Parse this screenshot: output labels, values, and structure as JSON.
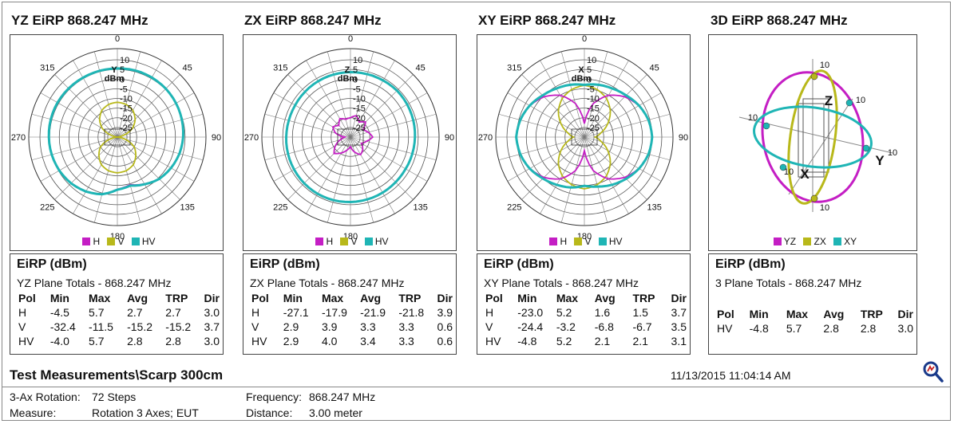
{
  "panels": [
    {
      "title": "YZ EiRP 868.247 MHz",
      "type": "polar",
      "legend": [
        {
          "label": "H",
          "color": "#c41ec4"
        },
        {
          "label": "V",
          "color": "#b8b81a"
        },
        {
          "label": "HV",
          "color": "#1fb5b5"
        }
      ],
      "table": {
        "title": "EiRP (dBm)",
        "subtitle": "YZ Plane Totals - 868.247 MHz",
        "headers": [
          "Pol",
          "Min",
          "Max",
          "Avg",
          "TRP",
          "Dir"
        ],
        "rows": [
          [
            "H",
            "-4.5",
            "5.7",
            "2.7",
            "2.7",
            "3.0"
          ],
          [
            "V",
            "-32.4",
            "-11.5",
            "-15.2",
            "-15.2",
            "3.7"
          ],
          [
            "HV",
            "-4.0",
            "5.7",
            "2.8",
            "2.8",
            "3.0"
          ]
        ]
      }
    },
    {
      "title": "ZX EiRP 868.247 MHz",
      "type": "polar",
      "legend": [
        {
          "label": "H",
          "color": "#c41ec4"
        },
        {
          "label": "V",
          "color": "#b8b81a"
        },
        {
          "label": "HV",
          "color": "#1fb5b5"
        }
      ],
      "table": {
        "title": "EiRP (dBm)",
        "subtitle": "ZX Plane Totals - 868.247 MHz",
        "headers": [
          "Pol",
          "Min",
          "Max",
          "Avg",
          "TRP",
          "Dir"
        ],
        "rows": [
          [
            "H",
            "-27.1",
            "-17.9",
            "-21.9",
            "-21.8",
            "3.9"
          ],
          [
            "V",
            "2.9",
            "3.9",
            "3.3",
            "3.3",
            "0.6"
          ],
          [
            "HV",
            "2.9",
            "4.0",
            "3.4",
            "3.3",
            "0.6"
          ]
        ]
      }
    },
    {
      "title": "XY EiRP 868.247 MHz",
      "type": "polar",
      "legend": [
        {
          "label": "H",
          "color": "#c41ec4"
        },
        {
          "label": "V",
          "color": "#b8b81a"
        },
        {
          "label": "HV",
          "color": "#1fb5b5"
        }
      ],
      "table": {
        "title": "EiRP (dBm)",
        "subtitle": "XY Plane Totals - 868.247 MHz",
        "headers": [
          "Pol",
          "Min",
          "Max",
          "Avg",
          "TRP",
          "Dir"
        ],
        "rows": [
          [
            "H",
            "-23.0",
            "5.2",
            "1.6",
            "1.5",
            "3.7"
          ],
          [
            "V",
            "-24.4",
            "-3.2",
            "-6.8",
            "-6.7",
            "3.5"
          ],
          [
            "HV",
            "-4.8",
            "5.2",
            "2.1",
            "2.1",
            "3.1"
          ]
        ]
      }
    },
    {
      "title": "3D EiRP 868.247 MHz",
      "type": "3d",
      "legend": [
        {
          "label": "YZ",
          "color": "#c41ec4"
        },
        {
          "label": "ZX",
          "color": "#b8b81a"
        },
        {
          "label": "XY",
          "color": "#1fb5b5"
        }
      ],
      "table": {
        "title": "EiRP (dBm)",
        "subtitle": "3 Plane Totals - 868.247 MHz",
        "headers": [
          "Pol",
          "Min",
          "Max",
          "Avg",
          "TRP",
          "Dir"
        ],
        "rows": [
          [
            "HV",
            "-4.8",
            "5.7",
            "2.8",
            "2.8",
            "3.0"
          ]
        ]
      }
    }
  ],
  "chart_data": [
    {
      "type": "polar",
      "title": "YZ EiRP 868.247 MHz",
      "axis_label_top": "Y",
      "unit": "dBm",
      "angle_ticks": [
        "0",
        "45",
        "90",
        "135",
        "180",
        "225",
        "270",
        "315"
      ],
      "radial_ticks": [
        "10",
        "5",
        "0",
        "-5",
        "-10",
        "-15",
        "-20",
        "-25"
      ],
      "rlim": [
        -30,
        10
      ],
      "series": [
        {
          "name": "H",
          "r_dbm": [
            5.5,
            5.7,
            5.6,
            5.4,
            5.0,
            4.5,
            4.0,
            3.2,
            2.0,
            0.5,
            -2.0,
            -4.5,
            -3.0,
            0.5,
            2.5,
            3.8,
            4.6,
            5.1,
            5.4,
            5.6,
            5.7,
            5.6,
            5.5,
            5.5
          ]
        },
        {
          "name": "V",
          "r_dbm": [
            -12.0,
            -12.5,
            -14.0,
            -17.0,
            -21.0,
            -27.0,
            -32.0,
            -26.0,
            -20.0,
            -16.5,
            -13.5,
            -12.0,
            -11.5,
            -12.0,
            -13.5,
            -16.5,
            -20.0,
            -26.0,
            -32.4,
            -27.0,
            -21.0,
            -17.0,
            -14.0,
            -12.5
          ]
        },
        {
          "name": "HV",
          "r_dbm": [
            5.5,
            5.7,
            5.6,
            5.4,
            5.0,
            4.5,
            4.0,
            3.2,
            2.0,
            0.6,
            -1.8,
            -4.0,
            -2.8,
            0.6,
            2.5,
            3.8,
            4.6,
            5.1,
            5.4,
            5.6,
            5.7,
            5.6,
            5.5,
            5.5
          ]
        }
      ]
    },
    {
      "type": "polar",
      "title": "ZX EiRP 868.247 MHz",
      "axis_label_top": "Z",
      "unit": "dBm",
      "angle_ticks": [
        "0",
        "45",
        "90",
        "135",
        "180",
        "225",
        "270",
        "315"
      ],
      "radial_ticks": [
        "10",
        "5",
        "0",
        "-5",
        "-10",
        "-15",
        "-20",
        "-25"
      ],
      "rlim": [
        -30,
        10
      ],
      "series": [
        {
          "name": "H",
          "r_dbm": [
            -20.0,
            -18.5,
            -21.0,
            -19.0,
            -22.5,
            -20.5,
            -18.5,
            -21.5,
            -23.5,
            -21.0,
            -19.5,
            -22.0,
            -25.0,
            -23.0,
            -20.5,
            -18.0,
            -21.0,
            -24.5,
            -27.1,
            -22.0,
            -19.5,
            -21.5,
            -19.0,
            -20.5
          ]
        },
        {
          "name": "V",
          "r_dbm": [
            3.6,
            3.7,
            3.8,
            3.9,
            3.8,
            3.6,
            3.3,
            3.1,
            2.9,
            3.0,
            3.2,
            3.4,
            3.6,
            3.8,
            3.9,
            3.8,
            3.6,
            3.4,
            3.2,
            3.0,
            3.0,
            3.2,
            3.4,
            3.5
          ]
        },
        {
          "name": "HV",
          "r_dbm": [
            3.6,
            3.7,
            3.8,
            4.0,
            3.8,
            3.6,
            3.3,
            3.1,
            2.9,
            3.0,
            3.2,
            3.4,
            3.6,
            3.8,
            3.9,
            3.8,
            3.6,
            3.4,
            3.2,
            3.0,
            3.0,
            3.2,
            3.4,
            3.5
          ]
        }
      ]
    },
    {
      "type": "polar",
      "title": "XY EiRP 868.247 MHz",
      "axis_label_top": "X",
      "unit": "dBm",
      "angle_ticks": [
        "0",
        "45",
        "90",
        "135",
        "180",
        "225",
        "270",
        "315"
      ],
      "radial_ticks": [
        "10",
        "5",
        "0",
        "-5",
        "-10",
        "-15",
        "-20",
        "-25"
      ],
      "rlim": [
        -30,
        10
      ],
      "series": [
        {
          "name": "H",
          "r_dbm": [
            -23.0,
            -12.0,
            -5.0,
            -0.5,
            2.5,
            4.3,
            5.0,
            4.3,
            2.5,
            -0.5,
            -5.0,
            -12.0,
            -23.0,
            -12.0,
            -5.0,
            -0.5,
            2.5,
            4.3,
            5.2,
            4.3,
            2.5,
            -0.5,
            -5.0,
            -12.0
          ]
        },
        {
          "name": "V",
          "r_dbm": [
            -3.2,
            -4.5,
            -7.0,
            -11.0,
            -16.0,
            -21.0,
            -24.4,
            -21.0,
            -16.0,
            -11.0,
            -7.0,
            -4.5,
            -3.2,
            -4.5,
            -7.0,
            -11.0,
            -16.0,
            -21.0,
            -24.4,
            -21.0,
            -16.0,
            -11.0,
            -7.0,
            -4.5
          ]
        },
        {
          "name": "HV",
          "r_dbm": [
            -3.0,
            -2.0,
            -1.0,
            0.5,
            2.6,
            4.3,
            5.0,
            4.3,
            2.6,
            0.5,
            -1.5,
            -3.5,
            -4.8,
            -3.0,
            -1.5,
            0.3,
            2.6,
            4.3,
            5.2,
            4.3,
            2.6,
            0.5,
            -1.0,
            -2.0
          ]
        }
      ]
    },
    {
      "type": "3d",
      "title": "3D EiRP 868.247 MHz",
      "axes": [
        "X",
        "Y",
        "Z"
      ],
      "tick_value": "10",
      "series": [
        {
          "name": "YZ"
        },
        {
          "name": "ZX"
        },
        {
          "name": "XY"
        }
      ]
    }
  ],
  "footer": {
    "title": "Test Measurements\\Scarp 300cm",
    "datetime": "11/13/2015 11:04:14 AM",
    "rotation_label": "3-Ax Rotation:",
    "rotation_value": "72 Steps",
    "measure_label": "Measure:",
    "measure_value": "Rotation 3 Axes; EUT",
    "frequency_label": "Frequency:",
    "frequency_value": "868.247 MHz",
    "distance_label": "Distance:",
    "distance_value": "3.00 meter",
    "zoom_icon": "magnifier-icon"
  },
  "colors": {
    "H": "#c41ec4",
    "V": "#b8b81a",
    "HV": "#1fb5b5",
    "YZ": "#c41ec4",
    "ZX": "#b8b81a",
    "XY": "#1fb5b5"
  }
}
